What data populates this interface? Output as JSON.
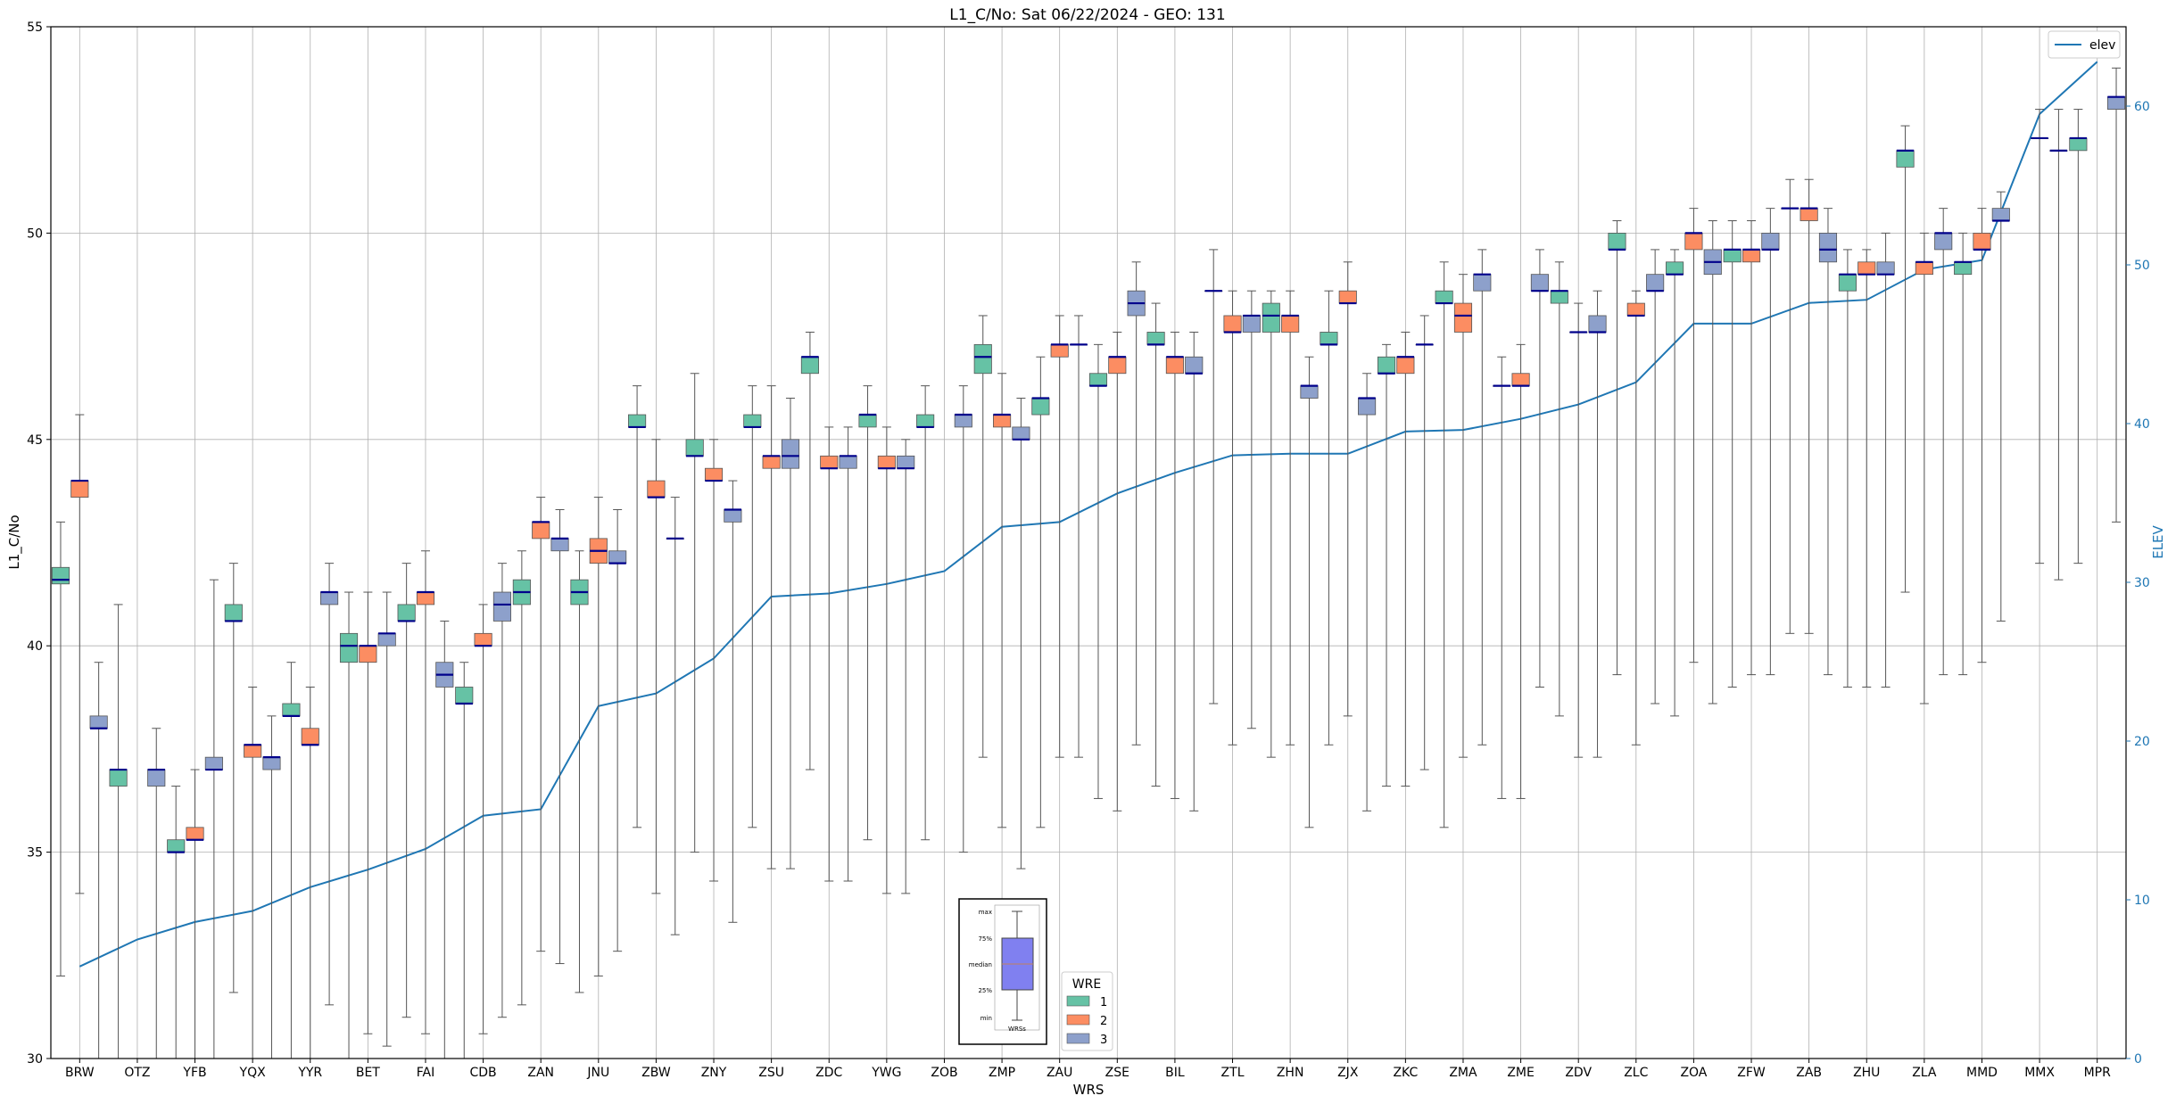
{
  "chart_data": {
    "type": "box",
    "title": "L1_C/No: Sat 06/22/2024 - GEO: 131",
    "xlabel": "WRS",
    "ylabel": "L1_C/No",
    "ylabel_right": "ELEV",
    "ylim": [
      30,
      55
    ],
    "ylim_right": [
      0,
      65
    ],
    "yticks": [
      "30",
      "35",
      "40",
      "45",
      "50",
      "55"
    ],
    "yticks_right": [
      "0",
      "10",
      "20",
      "30",
      "40",
      "50",
      "60"
    ],
    "grid": true,
    "categories": [
      "BRW",
      "OTZ",
      "YFB",
      "YQX",
      "YYR",
      "BET",
      "FAI",
      "CDB",
      "ZAN",
      "JNU",
      "ZBW",
      "ZNY",
      "ZSU",
      "ZDC",
      "YWG",
      "ZOB",
      "ZMP",
      "ZAU",
      "ZSE",
      "BIL",
      "ZTL",
      "ZHN",
      "ZJX",
      "ZKC",
      "ZMA",
      "ZME",
      "ZDV",
      "ZLC",
      "ZOA",
      "ZFW",
      "ZAB",
      "ZHU",
      "ZLA",
      "MMD",
      "MMX",
      "MPR"
    ],
    "wre_colors": {
      "1": "#66c2a5",
      "2": "#fc8d62",
      "3": "#8da0cb"
    },
    "median_color": "#00008b",
    "elev_color": "#1f77b4",
    "elev": [
      5.8,
      7.5,
      8.6,
      9.3,
      10.8,
      11.9,
      13.2,
      15.3,
      15.7,
      22.2,
      23.0,
      25.2,
      29.1,
      29.3,
      29.9,
      30.7,
      33.5,
      33.8,
      35.6,
      36.9,
      38.0,
      38.1,
      38.1,
      39.5,
      39.6,
      40.3,
      41.2,
      42.6,
      46.3,
      46.3,
      47.6,
      47.8,
      49.7,
      50.3,
      59.5,
      62.8
    ],
    "boxes": [
      {
        "station": "BRW",
        "wre": 1,
        "q1": 41.5,
        "q3": 41.9,
        "median": 41.6,
        "min": 32.0,
        "max": 43.0
      },
      {
        "station": "BRW",
        "wre": 2,
        "q1": 43.6,
        "q3": 44.0,
        "median": 44.0,
        "min": 34.0,
        "max": 45.6
      },
      {
        "station": "BRW",
        "wre": 3,
        "q1": 38.0,
        "q3": 38.3,
        "median": 38.0,
        "min": 30.0,
        "max": 39.6
      },
      {
        "station": "OTZ",
        "wre": 1,
        "q1": 36.6,
        "q3": 37.0,
        "median": 37.0,
        "min": 30.0,
        "max": 41.0
      },
      {
        "station": "OTZ",
        "wre": 3,
        "q1": 36.6,
        "q3": 37.0,
        "median": 37.0,
        "min": 30.0,
        "max": 38.0
      },
      {
        "station": "YFB",
        "wre": 1,
        "q1": 35.0,
        "q3": 35.3,
        "median": 35.0,
        "min": 30.0,
        "max": 36.6
      },
      {
        "station": "YFB",
        "wre": 2,
        "q1": 35.3,
        "q3": 35.6,
        "median": 35.3,
        "min": 30.0,
        "max": 37.0
      },
      {
        "station": "YFB",
        "wre": 3,
        "q1": 37.0,
        "q3": 37.3,
        "median": 37.0,
        "min": 30.0,
        "max": 41.6
      },
      {
        "station": "YQX",
        "wre": 1,
        "q1": 40.6,
        "q3": 41.0,
        "median": 40.6,
        "min": 31.6,
        "max": 42.0
      },
      {
        "station": "YQX",
        "wre": 2,
        "q1": 37.3,
        "q3": 37.6,
        "median": 37.6,
        "min": 30.0,
        "max": 39.0
      },
      {
        "station": "YQX",
        "wre": 3,
        "q1": 37.0,
        "q3": 37.3,
        "median": 37.3,
        "min": 30.0,
        "max": 38.3
      },
      {
        "station": "YYR",
        "wre": 1,
        "q1": 38.3,
        "q3": 38.6,
        "median": 38.3,
        "min": 30.0,
        "max": 39.6
      },
      {
        "station": "YYR",
        "wre": 2,
        "q1": 37.6,
        "q3": 38.0,
        "median": 37.6,
        "min": 30.0,
        "max": 39.0
      },
      {
        "station": "YYR",
        "wre": 3,
        "q1": 41.0,
        "q3": 41.3,
        "median": 41.3,
        "min": 31.3,
        "max": 42.0
      },
      {
        "station": "BET",
        "wre": 1,
        "q1": 39.6,
        "q3": 40.3,
        "median": 40.0,
        "min": 30.0,
        "max": 41.3
      },
      {
        "station": "BET",
        "wre": 2,
        "q1": 39.6,
        "q3": 40.0,
        "median": 40.0,
        "min": 30.6,
        "max": 41.3
      },
      {
        "station": "BET",
        "wre": 3,
        "q1": 40.0,
        "q3": 40.3,
        "median": 40.3,
        "min": 30.3,
        "max": 41.3
      },
      {
        "station": "FAI",
        "wre": 1,
        "q1": 40.6,
        "q3": 41.0,
        "median": 40.6,
        "min": 31.0,
        "max": 42.0
      },
      {
        "station": "FAI",
        "wre": 2,
        "q1": 41.0,
        "q3": 41.3,
        "median": 41.3,
        "min": 30.6,
        "max": 42.3
      },
      {
        "station": "FAI",
        "wre": 3,
        "q1": 39.0,
        "q3": 39.6,
        "median": 39.3,
        "min": 30.0,
        "max": 40.6
      },
      {
        "station": "CDB",
        "wre": 1,
        "q1": 38.6,
        "q3": 39.0,
        "median": 38.6,
        "min": 30.0,
        "max": 39.6
      },
      {
        "station": "CDB",
        "wre": 2,
        "q1": 40.0,
        "q3": 40.3,
        "median": 40.0,
        "min": 30.6,
        "max": 41.0
      },
      {
        "station": "CDB",
        "wre": 3,
        "q1": 40.6,
        "q3": 41.3,
        "median": 41.0,
        "min": 31.0,
        "max": 42.0
      },
      {
        "station": "ZAN",
        "wre": 1,
        "q1": 41.0,
        "q3": 41.6,
        "median": 41.3,
        "min": 31.3,
        "max": 42.3
      },
      {
        "station": "ZAN",
        "wre": 2,
        "q1": 42.6,
        "q3": 43.0,
        "median": 43.0,
        "min": 32.6,
        "max": 43.6
      },
      {
        "station": "ZAN",
        "wre": 3,
        "q1": 42.3,
        "q3": 42.6,
        "median": 42.6,
        "min": 32.3,
        "max": 43.3
      },
      {
        "station": "JNU",
        "wre": 1,
        "q1": 41.0,
        "q3": 41.6,
        "median": 41.3,
        "min": 31.6,
        "max": 42.3
      },
      {
        "station": "JNU",
        "wre": 2,
        "q1": 42.0,
        "q3": 42.6,
        "median": 42.3,
        "min": 32.0,
        "max": 43.6
      },
      {
        "station": "JNU",
        "wre": 3,
        "q1": 42.0,
        "q3": 42.3,
        "median": 42.0,
        "min": 32.6,
        "max": 43.3
      },
      {
        "station": "ZBW",
        "wre": 1,
        "q1": 45.3,
        "q3": 45.6,
        "median": 45.3,
        "min": 35.6,
        "max": 46.3
      },
      {
        "station": "ZBW",
        "wre": 2,
        "q1": 43.6,
        "q3": 44.0,
        "median": 43.6,
        "min": 34.0,
        "max": 45.0
      },
      {
        "station": "ZBW",
        "wre": 3,
        "q1": 42.6,
        "q3": 42.6,
        "median": 42.6,
        "min": 33.0,
        "max": 43.6
      },
      {
        "station": "ZNY",
        "wre": 1,
        "q1": 44.6,
        "q3": 45.0,
        "median": 44.6,
        "min": 35.0,
        "max": 46.6
      },
      {
        "station": "ZNY",
        "wre": 2,
        "q1": 44.0,
        "q3": 44.3,
        "median": 44.0,
        "min": 34.3,
        "max": 45.0
      },
      {
        "station": "ZNY",
        "wre": 3,
        "q1": 43.0,
        "q3": 43.3,
        "median": 43.3,
        "min": 33.3,
        "max": 44.0
      },
      {
        "station": "ZSU",
        "wre": 1,
        "q1": 45.3,
        "q3": 45.6,
        "median": 45.3,
        "min": 35.6,
        "max": 46.3
      },
      {
        "station": "ZSU",
        "wre": 2,
        "q1": 44.3,
        "q3": 44.6,
        "median": 44.6,
        "min": 34.6,
        "max": 46.3
      },
      {
        "station": "ZSU",
        "wre": 3,
        "q1": 44.3,
        "q3": 45.0,
        "median": 44.6,
        "min": 34.6,
        "max": 46.0
      },
      {
        "station": "ZDC",
        "wre": 1,
        "q1": 46.6,
        "q3": 47.0,
        "median": 47.0,
        "min": 37.0,
        "max": 47.6
      },
      {
        "station": "ZDC",
        "wre": 2,
        "q1": 44.3,
        "q3": 44.6,
        "median": 44.3,
        "min": 34.3,
        "max": 45.3
      },
      {
        "station": "ZDC",
        "wre": 3,
        "q1": 44.3,
        "q3": 44.6,
        "median": 44.6,
        "min": 34.3,
        "max": 45.3
      },
      {
        "station": "YWG",
        "wre": 1,
        "q1": 45.3,
        "q3": 45.6,
        "median": 45.6,
        "min": 35.3,
        "max": 46.3
      },
      {
        "station": "YWG",
        "wre": 2,
        "q1": 44.3,
        "q3": 44.6,
        "median": 44.3,
        "min": 34.0,
        "max": 45.3
      },
      {
        "station": "YWG",
        "wre": 3,
        "q1": 44.3,
        "q3": 44.6,
        "median": 44.3,
        "min": 34.0,
        "max": 45.0
      },
      {
        "station": "ZOB",
        "wre": 1,
        "q1": 45.3,
        "q3": 45.6,
        "median": 45.3,
        "min": 35.3,
        "max": 46.3
      },
      {
        "station": "ZOB",
        "wre": 3,
        "q1": 45.3,
        "q3": 45.6,
        "median": 45.6,
        "min": 35.0,
        "max": 46.3
      },
      {
        "station": "ZMP",
        "wre": 1,
        "q1": 46.6,
        "q3": 47.3,
        "median": 47.0,
        "min": 37.3,
        "max": 48.0
      },
      {
        "station": "ZMP",
        "wre": 2,
        "q1": 45.3,
        "q3": 45.6,
        "median": 45.6,
        "min": 35.6,
        "max": 46.6
      },
      {
        "station": "ZMP",
        "wre": 3,
        "q1": 45.0,
        "q3": 45.3,
        "median": 45.0,
        "min": 34.6,
        "max": 46.0
      },
      {
        "station": "ZAU",
        "wre": 1,
        "q1": 45.6,
        "q3": 46.0,
        "median": 46.0,
        "min": 35.6,
        "max": 47.0
      },
      {
        "station": "ZAU",
        "wre": 2,
        "q1": 47.0,
        "q3": 47.3,
        "median": 47.3,
        "min": 37.3,
        "max": 48.0
      },
      {
        "station": "ZAU",
        "wre": 3,
        "q1": 47.3,
        "q3": 47.3,
        "median": 47.3,
        "min": 37.3,
        "max": 48.0
      },
      {
        "station": "ZSE",
        "wre": 1,
        "q1": 46.3,
        "q3": 46.6,
        "median": 46.3,
        "min": 36.3,
        "max": 47.3
      },
      {
        "station": "ZSE",
        "wre": 2,
        "q1": 46.6,
        "q3": 47.0,
        "median": 47.0,
        "min": 36.0,
        "max": 47.6
      },
      {
        "station": "ZSE",
        "wre": 3,
        "q1": 48.0,
        "q3": 48.6,
        "median": 48.3,
        "min": 37.6,
        "max": 49.3
      },
      {
        "station": "BIL",
        "wre": 1,
        "q1": 47.3,
        "q3": 47.6,
        "median": 47.3,
        "min": 36.6,
        "max": 48.3
      },
      {
        "station": "BIL",
        "wre": 2,
        "q1": 46.6,
        "q3": 47.0,
        "median": 47.0,
        "min": 36.3,
        "max": 47.6
      },
      {
        "station": "BIL",
        "wre": 3,
        "q1": 46.6,
        "q3": 47.0,
        "median": 46.6,
        "min": 36.0,
        "max": 47.6
      },
      {
        "station": "ZTL",
        "wre": 1,
        "q1": 48.6,
        "q3": 48.6,
        "median": 48.6,
        "min": 38.6,
        "max": 49.6
      },
      {
        "station": "ZTL",
        "wre": 2,
        "q1": 47.6,
        "q3": 48.0,
        "median": 47.6,
        "min": 37.6,
        "max": 48.6
      },
      {
        "station": "ZTL",
        "wre": 3,
        "q1": 47.6,
        "q3": 48.0,
        "median": 48.0,
        "min": 38.0,
        "max": 48.6
      },
      {
        "station": "ZHN",
        "wre": 1,
        "q1": 47.6,
        "q3": 48.3,
        "median": 48.0,
        "min": 37.3,
        "max": 48.6
      },
      {
        "station": "ZHN",
        "wre": 2,
        "q1": 47.6,
        "q3": 48.0,
        "median": 48.0,
        "min": 37.6,
        "max": 48.6
      },
      {
        "station": "ZHN",
        "wre": 3,
        "q1": 46.0,
        "q3": 46.3,
        "median": 46.3,
        "min": 35.6,
        "max": 47.0
      },
      {
        "station": "ZJX",
        "wre": 1,
        "q1": 47.3,
        "q3": 47.6,
        "median": 47.3,
        "min": 37.6,
        "max": 48.6
      },
      {
        "station": "ZJX",
        "wre": 2,
        "q1": 48.3,
        "q3": 48.6,
        "median": 48.3,
        "min": 38.3,
        "max": 49.3
      },
      {
        "station": "ZJX",
        "wre": 3,
        "q1": 45.6,
        "q3": 46.0,
        "median": 46.0,
        "min": 36.0,
        "max": 46.6
      },
      {
        "station": "ZKC",
        "wre": 1,
        "q1": 46.6,
        "q3": 47.0,
        "median": 46.6,
        "min": 36.6,
        "max": 47.3
      },
      {
        "station": "ZKC",
        "wre": 2,
        "q1": 46.6,
        "q3": 47.0,
        "median": 47.0,
        "min": 36.6,
        "max": 47.6
      },
      {
        "station": "ZKC",
        "wre": 3,
        "q1": 47.3,
        "q3": 47.3,
        "median": 47.3,
        "min": 37.0,
        "max": 48.0
      },
      {
        "station": "ZMA",
        "wre": 1,
        "q1": 48.3,
        "q3": 48.6,
        "median": 48.3,
        "min": 35.6,
        "max": 49.3
      },
      {
        "station": "ZMA",
        "wre": 2,
        "q1": 47.6,
        "q3": 48.3,
        "median": 48.0,
        "min": 37.3,
        "max": 49.0
      },
      {
        "station": "ZMA",
        "wre": 3,
        "q1": 48.6,
        "q3": 49.0,
        "median": 49.0,
        "min": 37.6,
        "max": 49.6
      },
      {
        "station": "ZME",
        "wre": 1,
        "q1": 46.3,
        "q3": 46.3,
        "median": 46.3,
        "min": 36.3,
        "max": 47.0
      },
      {
        "station": "ZME",
        "wre": 2,
        "q1": 46.3,
        "q3": 46.6,
        "median": 46.3,
        "min": 36.3,
        "max": 47.3
      },
      {
        "station": "ZME",
        "wre": 3,
        "q1": 48.6,
        "q3": 49.0,
        "median": 48.6,
        "min": 39.0,
        "max": 49.6
      },
      {
        "station": "ZDV",
        "wre": 1,
        "q1": 48.3,
        "q3": 48.6,
        "median": 48.6,
        "min": 38.3,
        "max": 49.3
      },
      {
        "station": "ZDV",
        "wre": 2,
        "q1": 47.6,
        "q3": 47.6,
        "median": 47.6,
        "min": 37.3,
        "max": 48.3
      },
      {
        "station": "ZDV",
        "wre": 3,
        "q1": 47.6,
        "q3": 48.0,
        "median": 47.6,
        "min": 37.3,
        "max": 48.6
      },
      {
        "station": "ZLC",
        "wre": 1,
        "q1": 49.6,
        "q3": 50.0,
        "median": 49.6,
        "min": 39.3,
        "max": 50.3
      },
      {
        "station": "ZLC",
        "wre": 2,
        "q1": 48.0,
        "q3": 48.3,
        "median": 48.0,
        "min": 37.6,
        "max": 48.6
      },
      {
        "station": "ZLC",
        "wre": 3,
        "q1": 48.6,
        "q3": 49.0,
        "median": 48.6,
        "min": 38.6,
        "max": 49.6
      },
      {
        "station": "ZOA",
        "wre": 1,
        "q1": 49.0,
        "q3": 49.3,
        "median": 49.0,
        "min": 38.3,
        "max": 49.6
      },
      {
        "station": "ZOA",
        "wre": 2,
        "q1": 49.6,
        "q3": 50.0,
        "median": 50.0,
        "min": 39.6,
        "max": 50.6
      },
      {
        "station": "ZOA",
        "wre": 3,
        "q1": 49.0,
        "q3": 49.6,
        "median": 49.3,
        "min": 38.6,
        "max": 50.3
      },
      {
        "station": "ZFW",
        "wre": 1,
        "q1": 49.3,
        "q3": 49.6,
        "median": 49.6,
        "min": 39.0,
        "max": 50.3
      },
      {
        "station": "ZFW",
        "wre": 2,
        "q1": 49.3,
        "q3": 49.6,
        "median": 49.6,
        "min": 39.3,
        "max": 50.3
      },
      {
        "station": "ZFW",
        "wre": 3,
        "q1": 49.6,
        "q3": 50.0,
        "median": 49.6,
        "min": 39.3,
        "max": 50.6
      },
      {
        "station": "ZAB",
        "wre": 1,
        "q1": 50.6,
        "q3": 50.6,
        "median": 50.6,
        "min": 40.3,
        "max": 51.3
      },
      {
        "station": "ZAB",
        "wre": 2,
        "q1": 50.3,
        "q3": 50.6,
        "median": 50.6,
        "min": 40.3,
        "max": 51.3
      },
      {
        "station": "ZAB",
        "wre": 3,
        "q1": 49.3,
        "q3": 50.0,
        "median": 49.6,
        "min": 39.3,
        "max": 50.6
      },
      {
        "station": "ZHU",
        "wre": 1,
        "q1": 48.6,
        "q3": 49.0,
        "median": 49.0,
        "min": 39.0,
        "max": 49.6
      },
      {
        "station": "ZHU",
        "wre": 2,
        "q1": 49.0,
        "q3": 49.3,
        "median": 49.0,
        "min": 39.0,
        "max": 49.6
      },
      {
        "station": "ZHU",
        "wre": 3,
        "q1": 49.0,
        "q3": 49.3,
        "median": 49.0,
        "min": 39.0,
        "max": 50.0
      },
      {
        "station": "ZLA",
        "wre": 1,
        "q1": 51.6,
        "q3": 52.0,
        "median": 52.0,
        "min": 41.3,
        "max": 52.6
      },
      {
        "station": "ZLA",
        "wre": 2,
        "q1": 49.0,
        "q3": 49.3,
        "median": 49.3,
        "min": 38.6,
        "max": 50.0
      },
      {
        "station": "ZLA",
        "wre": 3,
        "q1": 49.6,
        "q3": 50.0,
        "median": 50.0,
        "min": 39.3,
        "max": 50.6
      },
      {
        "station": "MMD",
        "wre": 1,
        "q1": 49.0,
        "q3": 49.3,
        "median": 49.3,
        "min": 39.3,
        "max": 50.0
      },
      {
        "station": "MMD",
        "wre": 2,
        "q1": 49.6,
        "q3": 50.0,
        "median": 49.6,
        "min": 39.6,
        "max": 50.6
      },
      {
        "station": "MMD",
        "wre": 3,
        "q1": 50.3,
        "q3": 50.6,
        "median": 50.3,
        "min": 40.6,
        "max": 51.0
      },
      {
        "station": "MMX",
        "wre": 2,
        "q1": 52.3,
        "q3": 52.3,
        "median": 52.3,
        "min": 42.0,
        "max": 53.0
      },
      {
        "station": "MMX",
        "wre": 3,
        "q1": 52.0,
        "q3": 52.0,
        "median": 52.0,
        "min": 41.6,
        "max": 53.0
      },
      {
        "station": "MPR",
        "wre": 1,
        "q1": 52.0,
        "q3": 52.3,
        "median": 52.3,
        "min": 42.0,
        "max": 53.0
      },
      {
        "station": "MPR",
        "wre": 3,
        "q1": 53.0,
        "q3": 53.3,
        "median": 53.3,
        "min": 43.0,
        "max": 54.0
      }
    ],
    "legend_elev": {
      "label": "elev",
      "placement": "top-right"
    },
    "legend_wre": {
      "title": "WRE",
      "entries": [
        "1",
        "2",
        "3"
      ],
      "placement": "bottom-center"
    },
    "inset_key": {
      "labels": [
        "max",
        "75%",
        "median",
        "25%",
        "min"
      ],
      "xlabel": "WRSs",
      "color": "#8080f0"
    }
  }
}
